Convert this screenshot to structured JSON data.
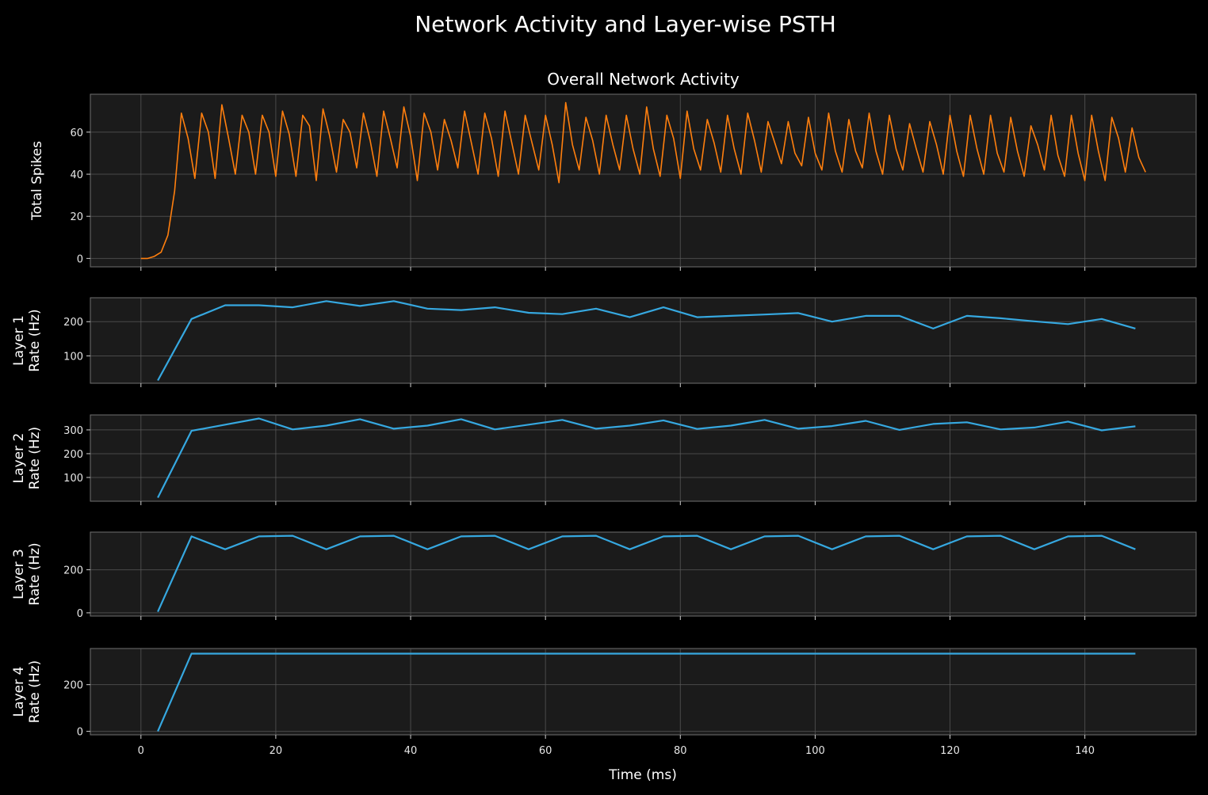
{
  "figure": {
    "suptitle": "Network Activity and Layer-wise PSTH",
    "xlabel": "Time (ms)",
    "background": "#000000",
    "axes_facecolor": "#1b1b1b"
  },
  "chart_data": [
    {
      "id": "overall",
      "type": "line",
      "title": "Overall Network Activity",
      "ylabel": [
        "Total Spikes"
      ],
      "color": "#ff7f0e",
      "xlim": [
        -7.5,
        156.5
      ],
      "ylim": [
        -4,
        78
      ],
      "xticks": [
        0,
        20,
        40,
        60,
        80,
        100,
        120,
        140
      ],
      "yticks": [
        0,
        20,
        40,
        60
      ],
      "show_xticklabels": false,
      "grid": true,
      "series": [
        {
          "x": [
            0,
            1,
            2,
            3,
            4,
            5,
            6,
            7,
            8,
            9,
            10,
            11,
            12,
            13,
            14,
            15,
            16,
            17,
            18,
            19,
            20,
            21,
            22,
            23,
            24,
            25,
            26,
            27,
            28,
            29,
            30,
            31,
            32,
            33,
            34,
            35,
            36,
            37,
            38,
            39,
            40,
            41,
            42,
            43,
            44,
            45,
            46,
            47,
            48,
            49,
            50,
            51,
            52,
            53,
            54,
            55,
            56,
            57,
            58,
            59,
            60,
            61,
            62,
            63,
            64,
            65,
            66,
            67,
            68,
            69,
            70,
            71,
            72,
            73,
            74,
            75,
            76,
            77,
            78,
            79,
            80,
            81,
            82,
            83,
            84,
            85,
            86,
            87,
            88,
            89,
            90,
            91,
            92,
            93,
            94,
            95,
            96,
            97,
            98,
            99,
            100,
            101,
            102,
            103,
            104,
            105,
            106,
            107,
            108,
            109,
            110,
            111,
            112,
            113,
            114,
            115,
            116,
            117,
            118,
            119,
            120,
            121,
            122,
            123,
            124,
            125,
            126,
            127,
            128,
            129,
            130,
            131,
            132,
            133,
            134,
            135,
            136,
            137,
            138,
            139,
            140,
            141,
            142,
            143,
            144,
            145,
            146,
            147,
            148,
            149
          ],
          "y": [
            0,
            0,
            1,
            3,
            11,
            32,
            69,
            57,
            38,
            69,
            60,
            38,
            73,
            57,
            40,
            68,
            60,
            40,
            68,
            60,
            39,
            70,
            59,
            39,
            68,
            63,
            37,
            71,
            58,
            41,
            66,
            60,
            43,
            69,
            56,
            39,
            70,
            57,
            43,
            72,
            58,
            37,
            69,
            60,
            42,
            66,
            56,
            43,
            70,
            55,
            40,
            69,
            57,
            39,
            70,
            55,
            40,
            68,
            55,
            42,
            68,
            54,
            36,
            74,
            54,
            42,
            67,
            56,
            40,
            68,
            54,
            42,
            68,
            52,
            40,
            72,
            52,
            39,
            68,
            57,
            38,
            70,
            52,
            42,
            66,
            55,
            41,
            68,
            52,
            40,
            69,
            56,
            41,
            65,
            55,
            45,
            65,
            50,
            44,
            67,
            50,
            42,
            69,
            51,
            41,
            66,
            51,
            43,
            69,
            51,
            40,
            68,
            52,
            42,
            64,
            52,
            41,
            65,
            54,
            40,
            68,
            51,
            39,
            68,
            52,
            40,
            68,
            50,
            41,
            67,
            51,
            39,
            63,
            54,
            42,
            68,
            49,
            39,
            68,
            50,
            37,
            68,
            51,
            37,
            67,
            57,
            41,
            62,
            48,
            41
          ]
        }
      ]
    },
    {
      "id": "layer1",
      "type": "line",
      "ylabel": [
        "Layer 1",
        "Rate (Hz)"
      ],
      "color": "#36a8e0",
      "xlim": [
        -7.5,
        156.5
      ],
      "ylim": [
        20,
        270
      ],
      "xticks": [
        0,
        20,
        40,
        60,
        80,
        100,
        120,
        140
      ],
      "yticks": [
        100,
        200
      ],
      "show_xticklabels": false,
      "grid": true,
      "series": [
        {
          "x": [
            2.5,
            7.5,
            12.5,
            17.5,
            22.5,
            27.5,
            32.5,
            37.5,
            42.5,
            47.5,
            52.5,
            57.5,
            62.5,
            67.5,
            72.5,
            77.5,
            82.5,
            87.5,
            92.5,
            97.5,
            102.5,
            107.5,
            112.5,
            117.5,
            122.5,
            127.5,
            132.5,
            137.5,
            142.5,
            147.5
          ],
          "y": [
            28,
            208,
            248,
            248,
            242,
            260,
            246,
            260,
            238,
            234,
            242,
            226,
            222,
            238,
            213,
            242,
            213,
            217,
            221,
            225,
            200,
            217,
            217,
            180,
            217,
            210,
            201,
            193,
            208,
            180
          ]
        }
      ]
    },
    {
      "id": "layer2",
      "type": "line",
      "ylabel": [
        "Layer 2",
        "Rate (Hz)"
      ],
      "color": "#36a8e0",
      "xlim": [
        -7.5,
        156.5
      ],
      "ylim": [
        0,
        363
      ],
      "xticks": [
        0,
        20,
        40,
        60,
        80,
        100,
        120,
        140
      ],
      "yticks": [
        100,
        200,
        300
      ],
      "show_xticklabels": false,
      "grid": true,
      "series": [
        {
          "x": [
            2.5,
            7.5,
            12.5,
            17.5,
            22.5,
            27.5,
            32.5,
            37.5,
            42.5,
            47.5,
            52.5,
            57.5,
            62.5,
            67.5,
            72.5,
            77.5,
            82.5,
            87.5,
            92.5,
            97.5,
            102.5,
            107.5,
            112.5,
            117.5,
            122.5,
            127.5,
            132.5,
            137.5,
            142.5,
            147.5
          ],
          "y": [
            15,
            296,
            322,
            348,
            302,
            318,
            345,
            305,
            318,
            345,
            302,
            322,
            342,
            305,
            318,
            340,
            304,
            318,
            342,
            305,
            316,
            338,
            300,
            325,
            332,
            302,
            310,
            335,
            298,
            315
          ]
        }
      ]
    },
    {
      "id": "layer3",
      "type": "line",
      "ylabel": [
        "Layer 3",
        "Rate (Hz)"
      ],
      "color": "#36a8e0",
      "xlim": [
        -7.5,
        156.5
      ],
      "ylim": [
        -15,
        375
      ],
      "xticks": [
        0,
        20,
        40,
        60,
        80,
        100,
        120,
        140
      ],
      "yticks": [
        0,
        200
      ],
      "show_xticklabels": false,
      "grid": true,
      "series": [
        {
          "x": [
            2.5,
            7.5,
            12.5,
            17.5,
            22.5,
            27.5,
            32.5,
            37.5,
            42.5,
            47.5,
            52.5,
            57.5,
            62.5,
            67.5,
            72.5,
            77.5,
            82.5,
            87.5,
            92.5,
            97.5,
            102.5,
            107.5,
            112.5,
            117.5,
            122.5,
            127.5,
            132.5,
            137.5,
            142.5,
            147.5
          ],
          "y": [
            5,
            355,
            295,
            355,
            358,
            295,
            355,
            358,
            295,
            355,
            358,
            295,
            355,
            358,
            295,
            355,
            358,
            295,
            355,
            358,
            295,
            355,
            358,
            295,
            355,
            358,
            295,
            355,
            358,
            295
          ]
        }
      ]
    },
    {
      "id": "layer4",
      "type": "line",
      "ylabel": [
        "Layer 4",
        "Rate (Hz)"
      ],
      "color": "#36a8e0",
      "xlim": [
        -7.5,
        156.5
      ],
      "ylim": [
        -15,
        355
      ],
      "xticks": [
        0,
        20,
        40,
        60,
        80,
        100,
        120,
        140
      ],
      "yticks": [
        0,
        200
      ],
      "show_xticklabels": true,
      "grid": true,
      "series": [
        {
          "x": [
            2.5,
            7.5,
            12.5,
            17.5,
            22.5,
            27.5,
            32.5,
            37.5,
            42.5,
            47.5,
            52.5,
            57.5,
            62.5,
            67.5,
            72.5,
            77.5,
            82.5,
            87.5,
            92.5,
            97.5,
            102.5,
            107.5,
            112.5,
            117.5,
            122.5,
            127.5,
            132.5,
            137.5,
            142.5,
            147.5
          ],
          "y": [
            0,
            333,
            333,
            333,
            333,
            333,
            333,
            333,
            333,
            333,
            333,
            333,
            333,
            333,
            333,
            333,
            333,
            333,
            333,
            333,
            333,
            333,
            333,
            333,
            333,
            333,
            333,
            333,
            333,
            333
          ]
        }
      ]
    }
  ]
}
